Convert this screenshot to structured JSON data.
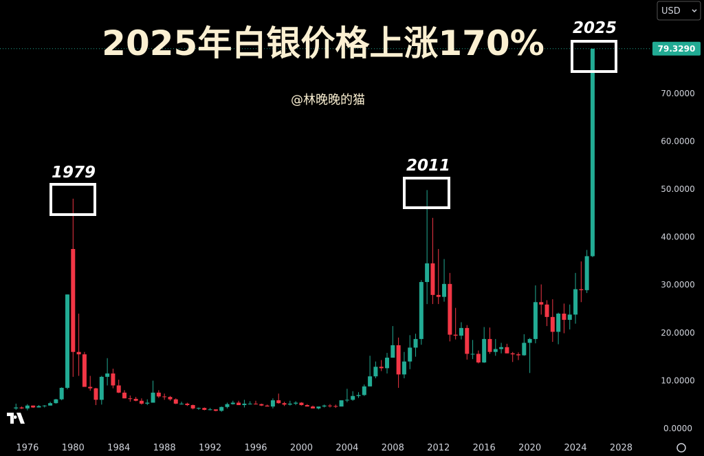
{
  "chart_data": {
    "type": "candlestick",
    "title": "2025年白银价格上涨170%",
    "watermark": "@林晚晚的猫",
    "annotations": [
      "1979",
      "2011",
      "2025"
    ],
    "currency": "USD",
    "up_color": "#22ab94",
    "down_color": "#f23645",
    "xlim": [
      1973.6,
      2030.5
    ],
    "ylim": [
      -2,
      89.5
    ],
    "xticks": [
      1976,
      1980,
      1984,
      1988,
      1992,
      1996,
      2000,
      2004,
      2008,
      2012,
      2016,
      2020,
      2024,
      2028
    ],
    "yticks": [
      {
        "value": 0,
        "label": "0.0000"
      },
      {
        "value": 10,
        "label": "10.0000"
      },
      {
        "value": 20,
        "label": "20.0000"
      },
      {
        "value": 30,
        "label": "30.0000"
      },
      {
        "value": 40,
        "label": "40.0000"
      },
      {
        "value": 50,
        "label": "50.0000"
      },
      {
        "value": 60,
        "label": "60.0000"
      },
      {
        "value": 70,
        "label": "70.0000"
      }
    ],
    "price_label": {
      "value": 79.329,
      "label": "79.3290"
    },
    "x": [
      1975,
      1975.5,
      1976,
      1976.5,
      1977,
      1977.5,
      1978,
      1978.5,
      1979,
      1979.5,
      1980,
      1980.5,
      1981,
      1981.5,
      1982,
      1982.5,
      1983,
      1983.5,
      1984,
      1984.5,
      1985,
      1985.5,
      1986,
      1986.5,
      1987,
      1987.5,
      1988,
      1988.5,
      1989,
      1989.5,
      1990,
      1990.5,
      1991,
      1991.5,
      1992,
      1992.5,
      1993,
      1993.5,
      1994,
      1994.5,
      1995,
      1995.5,
      1996,
      1996.5,
      1997,
      1997.5,
      1998,
      1998.5,
      1999,
      1999.5,
      2000,
      2000.5,
      2001,
      2001.5,
      2002,
      2002.5,
      2003,
      2003.5,
      2004,
      2004.5,
      2005,
      2005.5,
      2006,
      2006.5,
      2007,
      2007.5,
      2008,
      2008.5,
      2009,
      2009.5,
      2010,
      2010.5,
      2011,
      2011.5,
      2012,
      2012.5,
      2013,
      2013.5,
      2014,
      2014.5,
      2015,
      2015.5,
      2016,
      2016.5,
      2017,
      2017.5,
      2018,
      2018.5,
      2019,
      2019.5,
      2020,
      2020.5,
      2021,
      2021.5,
      2022,
      2022.5,
      2023,
      2023.5,
      2024,
      2024.5,
      2025,
      2025.5
    ],
    "open": [
      4.2,
      4.4,
      4.2,
      4.8,
      4.4,
      4.7,
      4.8,
      5.3,
      6.1,
      8.5,
      37.5,
      16,
      15.5,
      8.7,
      8.4,
      6,
      10.8,
      11.5,
      9,
      7.5,
      6.3,
      6.2,
      5.8,
      5.2,
      5.4,
      7.5,
      6.7,
      6.6,
      6.1,
      5.2,
      5.2,
      4.9,
      4.2,
      4.3,
      3.9,
      4,
      3.7,
      4.5,
      5.1,
      5.4,
      4.9,
      5.2,
      5.2,
      5.1,
      4.8,
      4.6,
      5.9,
      5.3,
      5,
      5.2,
      5.4,
      4.9,
      4.6,
      4.2,
      4.6,
      4.8,
      4.7,
      4.6,
      5.9,
      6,
      6.8,
      7,
      8.8,
      10.9,
      12.9,
      12.6,
      14.8,
      17.4,
      11.3,
      14,
      16.9,
      18.7,
      30.6,
      34.5,
      27.9,
      27.5,
      30.2,
      19.6,
      19.4,
      21,
      15.6,
      15.6,
      13.8,
      18.7,
      16,
      16.6,
      17,
      15.7,
      15.5,
      15.3,
      17.9,
      18.7,
      26.4,
      25.9,
      23.3,
      20.2,
      24,
      22.7,
      23.8,
      29.1,
      28.9,
      36
    ],
    "high": [
      5.2,
      4.6,
      5.1,
      4.8,
      4.9,
      4.9,
      5.6,
      6.2,
      8.6,
      28,
      48,
      24,
      16,
      11,
      8.5,
      11,
      14.7,
      12.5,
      10.2,
      8,
      6.9,
      6.6,
      6.3,
      6.1,
      10,
      8,
      7.3,
      6.8,
      6.3,
      5.6,
      5.4,
      5,
      4.4,
      4.4,
      4.3,
      4,
      4.6,
      5.4,
      5.8,
      5.8,
      6,
      5.7,
      5.8,
      5.2,
      5,
      6.3,
      7.3,
      5.6,
      5.8,
      5.7,
      5.5,
      5.1,
      4.8,
      4.6,
      5,
      5.1,
      5,
      5.9,
      8.3,
      7.8,
      7.6,
      9.2,
      15.2,
      14,
      14.3,
      15.8,
      21.4,
      19,
      16,
      19.5,
      19.8,
      31,
      49.8,
      44,
      37.5,
      35.4,
      32.5,
      25.2,
      22.2,
      21.6,
      18.5,
      16.3,
      21.2,
      21.1,
      18.7,
      17.9,
      17.7,
      16,
      15.9,
      19.7,
      18.9,
      29.9,
      30.1,
      26.8,
      27,
      24.2,
      26.1,
      25.9,
      32.5,
      34.9,
      37.3,
      79.329
    ],
    "low": [
      3.9,
      4.1,
      3.8,
      4.3,
      4.4,
      4.4,
      4.8,
      5.2,
      5.9,
      8.2,
      10.8,
      11,
      9.5,
      7.9,
      4.9,
      5,
      9,
      8.4,
      7.4,
      6.3,
      5.6,
      5.7,
      5,
      4.9,
      5.4,
      6.4,
      6,
      5.8,
      5.1,
      5,
      4.7,
      4,
      3.9,
      3.8,
      3.8,
      3.6,
      3.5,
      4.2,
      5,
      4.9,
      4.4,
      5,
      5,
      4.7,
      4.6,
      4.2,
      5.2,
      4.7,
      4.8,
      4.9,
      4.8,
      4.6,
      4.2,
      4,
      4.4,
      4.4,
      4.3,
      4.6,
      5.5,
      5.8,
      6.4,
      6.8,
      8.8,
      10.5,
      12,
      11.5,
      14.8,
      8.5,
      10.5,
      12.4,
      15,
      17.5,
      26,
      26,
      26,
      26.5,
      18.2,
      18.6,
      18.6,
      14.4,
      14.5,
      13.6,
      13.7,
      15.6,
      15.2,
      15.7,
      15.7,
      13.9,
      14.3,
      15.2,
      11.6,
      17.8,
      23.8,
      21.4,
      18.1,
      17.6,
      19.9,
      20.7,
      21.9,
      26.4,
      28.3,
      35.8
    ],
    "close": [
      4.4,
      4.2,
      4.8,
      4.4,
      4.7,
      4.8,
      5.3,
      6.1,
      8.5,
      28,
      16,
      15.5,
      8.7,
      8.4,
      6,
      10.8,
      11.5,
      9,
      7.5,
      6.3,
      6.2,
      5.8,
      5.2,
      5.4,
      7.5,
      6.7,
      6.6,
      6.1,
      5.2,
      5.2,
      4.9,
      4.2,
      4.3,
      3.9,
      4,
      3.7,
      4.5,
      5.1,
      5.4,
      4.9,
      5.2,
      5.2,
      5.1,
      4.8,
      4.6,
      5.9,
      5.3,
      5,
      5.2,
      5.4,
      4.9,
      4.6,
      4.2,
      4.6,
      4.8,
      4.7,
      4.6,
      5.9,
      6,
      6.8,
      7,
      8.8,
      10.9,
      12.9,
      12.6,
      14.8,
      17.4,
      11.3,
      14,
      16.9,
      18.7,
      30.6,
      34.5,
      27.9,
      27.5,
      30.2,
      19.6,
      19.4,
      21,
      15.6,
      15.6,
      13.8,
      18.7,
      16,
      16.6,
      17,
      15.7,
      15.5,
      15.3,
      17.9,
      18.7,
      26.4,
      25.9,
      23.3,
      20.2,
      24,
      22.7,
      23.8,
      29.1,
      28.9,
      36,
      79.329
    ]
  }
}
